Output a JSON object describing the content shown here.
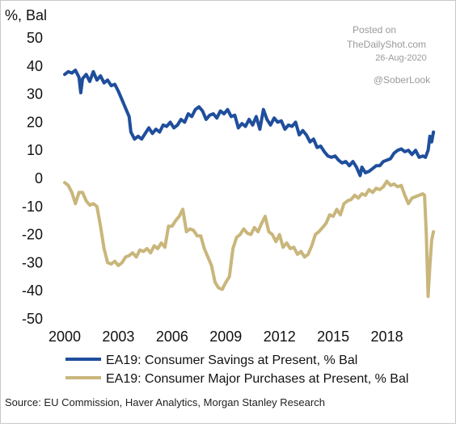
{
  "chart_data": {
    "type": "line",
    "ylabel": "%, Bal",
    "ylim": [
      -50,
      50
    ],
    "yticks": [
      50,
      40,
      30,
      20,
      10,
      0,
      -10,
      -20,
      -30,
      -40,
      -50
    ],
    "xlim": [
      2000,
      2021
    ],
    "xticks": [
      2000,
      2003,
      2006,
      2009,
      2012,
      2015,
      2018
    ],
    "grid": false,
    "legend_position": "bottom",
    "series": [
      {
        "name": "EA19: Consumer Savings at Present, % Bal",
        "color": "#1f4e9c",
        "points": [
          [
            2000.0,
            37
          ],
          [
            2000.2,
            38
          ],
          [
            2000.4,
            37.5
          ],
          [
            2000.6,
            38.5
          ],
          [
            2000.8,
            36
          ],
          [
            2000.9,
            30.5
          ],
          [
            2001.0,
            35.5
          ],
          [
            2001.2,
            37
          ],
          [
            2001.4,
            34.5
          ],
          [
            2001.6,
            38
          ],
          [
            2001.8,
            35
          ],
          [
            2002.0,
            36.5
          ],
          [
            2002.2,
            34
          ],
          [
            2002.4,
            35
          ],
          [
            2002.6,
            33
          ],
          [
            2002.8,
            33.5
          ],
          [
            2003.0,
            31
          ],
          [
            2003.2,
            28
          ],
          [
            2003.4,
            25
          ],
          [
            2003.6,
            22
          ],
          [
            2003.7,
            16.5
          ],
          [
            2003.9,
            14
          ],
          [
            2004.1,
            15
          ],
          [
            2004.3,
            14
          ],
          [
            2004.5,
            16
          ],
          [
            2004.7,
            18
          ],
          [
            2004.9,
            16
          ],
          [
            2005.1,
            17.5
          ],
          [
            2005.3,
            16.5
          ],
          [
            2005.5,
            19
          ],
          [
            2005.7,
            18.5
          ],
          [
            2005.9,
            20
          ],
          [
            2006.1,
            18
          ],
          [
            2006.3,
            19
          ],
          [
            2006.5,
            21
          ],
          [
            2006.7,
            20
          ],
          [
            2006.9,
            23
          ],
          [
            2007.1,
            22
          ],
          [
            2007.3,
            24.5
          ],
          [
            2007.5,
            25.5
          ],
          [
            2007.7,
            24
          ],
          [
            2007.9,
            21
          ],
          [
            2008.1,
            22.5
          ],
          [
            2008.3,
            23
          ],
          [
            2008.5,
            21.5
          ],
          [
            2008.7,
            24
          ],
          [
            2008.9,
            23
          ],
          [
            2009.1,
            24.5
          ],
          [
            2009.3,
            22
          ],
          [
            2009.5,
            22.5
          ],
          [
            2009.7,
            18
          ],
          [
            2009.9,
            19.5
          ],
          [
            2010.1,
            18.5
          ],
          [
            2010.3,
            21
          ],
          [
            2010.5,
            19
          ],
          [
            2010.7,
            22
          ],
          [
            2010.9,
            17.5
          ],
          [
            2011.1,
            24.5
          ],
          [
            2011.3,
            21
          ],
          [
            2011.5,
            19
          ],
          [
            2011.7,
            21.5
          ],
          [
            2011.9,
            20
          ],
          [
            2012.1,
            20.5
          ],
          [
            2012.3,
            17.5
          ],
          [
            2012.5,
            19
          ],
          [
            2012.7,
            18.5
          ],
          [
            2012.9,
            20
          ],
          [
            2013.1,
            15.5
          ],
          [
            2013.3,
            17
          ],
          [
            2013.5,
            15.5
          ],
          [
            2013.7,
            13
          ],
          [
            2013.9,
            14
          ],
          [
            2014.1,
            11
          ],
          [
            2014.3,
            11.5
          ],
          [
            2014.5,
            9.5
          ],
          [
            2014.7,
            8
          ],
          [
            2014.9,
            7.5
          ],
          [
            2015.1,
            8
          ],
          [
            2015.3,
            6.5
          ],
          [
            2015.5,
            5.5
          ],
          [
            2015.7,
            6
          ],
          [
            2015.9,
            4.5
          ],
          [
            2016.1,
            6
          ],
          [
            2016.3,
            4
          ],
          [
            2016.5,
            1
          ],
          [
            2016.6,
            4
          ],
          [
            2016.8,
            2
          ],
          [
            2017.0,
            2.5
          ],
          [
            2017.2,
            3.5
          ],
          [
            2017.4,
            4.5
          ],
          [
            2017.6,
            4.5
          ],
          [
            2017.8,
            6
          ],
          [
            2018.0,
            6.5
          ],
          [
            2018.2,
            7
          ],
          [
            2018.4,
            9
          ],
          [
            2018.6,
            10
          ],
          [
            2018.8,
            10.5
          ],
          [
            2019.0,
            9.5
          ],
          [
            2019.2,
            10
          ],
          [
            2019.4,
            8.5
          ],
          [
            2019.6,
            10
          ],
          [
            2019.8,
            7.5
          ],
          [
            2020.0,
            8
          ],
          [
            2020.15,
            7.5
          ],
          [
            2020.3,
            10
          ],
          [
            2020.4,
            15
          ],
          [
            2020.5,
            13
          ],
          [
            2020.6,
            16.5
          ]
        ]
      },
      {
        "name": "EA19: Consumer Major Purchases at Present, % Bal",
        "color": "#c9b67b",
        "points": [
          [
            2000.0,
            -1.5
          ],
          [
            2000.2,
            -2.5
          ],
          [
            2000.4,
            -5
          ],
          [
            2000.6,
            -9
          ],
          [
            2000.8,
            -5
          ],
          [
            2001.0,
            -5
          ],
          [
            2001.2,
            -8
          ],
          [
            2001.4,
            -9.5
          ],
          [
            2001.6,
            -9
          ],
          [
            2001.8,
            -10
          ],
          [
            2002.0,
            -17
          ],
          [
            2002.2,
            -25
          ],
          [
            2002.4,
            -30
          ],
          [
            2002.6,
            -30.5
          ],
          [
            2002.8,
            -29.5
          ],
          [
            2003.0,
            -31
          ],
          [
            2003.2,
            -30
          ],
          [
            2003.4,
            -28
          ],
          [
            2003.6,
            -27.5
          ],
          [
            2003.8,
            -26.5
          ],
          [
            2004.0,
            -28
          ],
          [
            2004.2,
            -25.5
          ],
          [
            2004.4,
            -26
          ],
          [
            2004.6,
            -25
          ],
          [
            2004.8,
            -26.5
          ],
          [
            2005.0,
            -24
          ],
          [
            2005.2,
            -25
          ],
          [
            2005.4,
            -23
          ],
          [
            2005.6,
            -24.5
          ],
          [
            2005.8,
            -17
          ],
          [
            2006.0,
            -17
          ],
          [
            2006.2,
            -15
          ],
          [
            2006.4,
            -13.5
          ],
          [
            2006.6,
            -11
          ],
          [
            2006.8,
            -19
          ],
          [
            2007.0,
            -18
          ],
          [
            2007.2,
            -18.5
          ],
          [
            2007.4,
            -20.5
          ],
          [
            2007.6,
            -20.5
          ],
          [
            2007.8,
            -25
          ],
          [
            2008.0,
            -28
          ],
          [
            2008.2,
            -31
          ],
          [
            2008.4,
            -37
          ],
          [
            2008.6,
            -39
          ],
          [
            2008.8,
            -39.5
          ],
          [
            2009.0,
            -37
          ],
          [
            2009.2,
            -35
          ],
          [
            2009.4,
            -25
          ],
          [
            2009.6,
            -21
          ],
          [
            2009.8,
            -20
          ],
          [
            2010.0,
            -18
          ],
          [
            2010.2,
            -19.5
          ],
          [
            2010.4,
            -20
          ],
          [
            2010.6,
            -17.5
          ],
          [
            2010.8,
            -19
          ],
          [
            2011.0,
            -16
          ],
          [
            2011.2,
            -13.5
          ],
          [
            2011.4,
            -19
          ],
          [
            2011.6,
            -20
          ],
          [
            2011.8,
            -22.5
          ],
          [
            2012.0,
            -20
          ],
          [
            2012.2,
            -24.5
          ],
          [
            2012.4,
            -23
          ],
          [
            2012.6,
            -25
          ],
          [
            2012.8,
            -24.5
          ],
          [
            2013.0,
            -27
          ],
          [
            2013.2,
            -26
          ],
          [
            2013.4,
            -28
          ],
          [
            2013.6,
            -27
          ],
          [
            2013.8,
            -24
          ],
          [
            2014.0,
            -20
          ],
          [
            2014.2,
            -19
          ],
          [
            2014.4,
            -17.5
          ],
          [
            2014.6,
            -16
          ],
          [
            2014.8,
            -13
          ],
          [
            2015.0,
            -13.5
          ],
          [
            2015.2,
            -11
          ],
          [
            2015.4,
            -13
          ],
          [
            2015.6,
            -9
          ],
          [
            2015.8,
            -8
          ],
          [
            2016.0,
            -7.5
          ],
          [
            2016.2,
            -6
          ],
          [
            2016.4,
            -7
          ],
          [
            2016.6,
            -5.5
          ],
          [
            2016.8,
            -6
          ],
          [
            2017.0,
            -4
          ],
          [
            2017.2,
            -5
          ],
          [
            2017.4,
            -3.5
          ],
          [
            2017.6,
            -4
          ],
          [
            2017.8,
            -3
          ],
          [
            2018.0,
            -1
          ],
          [
            2018.2,
            -2.5
          ],
          [
            2018.4,
            -2
          ],
          [
            2018.6,
            -3
          ],
          [
            2018.8,
            -2.5
          ],
          [
            2019.0,
            -6
          ],
          [
            2019.2,
            -9
          ],
          [
            2019.4,
            -7
          ],
          [
            2019.6,
            -6.5
          ],
          [
            2019.8,
            -6
          ],
          [
            2020.0,
            -5.5
          ],
          [
            2020.1,
            -6
          ],
          [
            2020.2,
            -20
          ],
          [
            2020.3,
            -42
          ],
          [
            2020.4,
            -31
          ],
          [
            2020.5,
            -22
          ],
          [
            2020.6,
            -19
          ]
        ]
      }
    ],
    "annotations": [
      "Posted on",
      "TheDailyShot.com",
      "26-Aug-2020",
      "@SoberLook"
    ],
    "source": "Source: EU Commission, Haver Analytics, Morgan Stanley Research"
  }
}
